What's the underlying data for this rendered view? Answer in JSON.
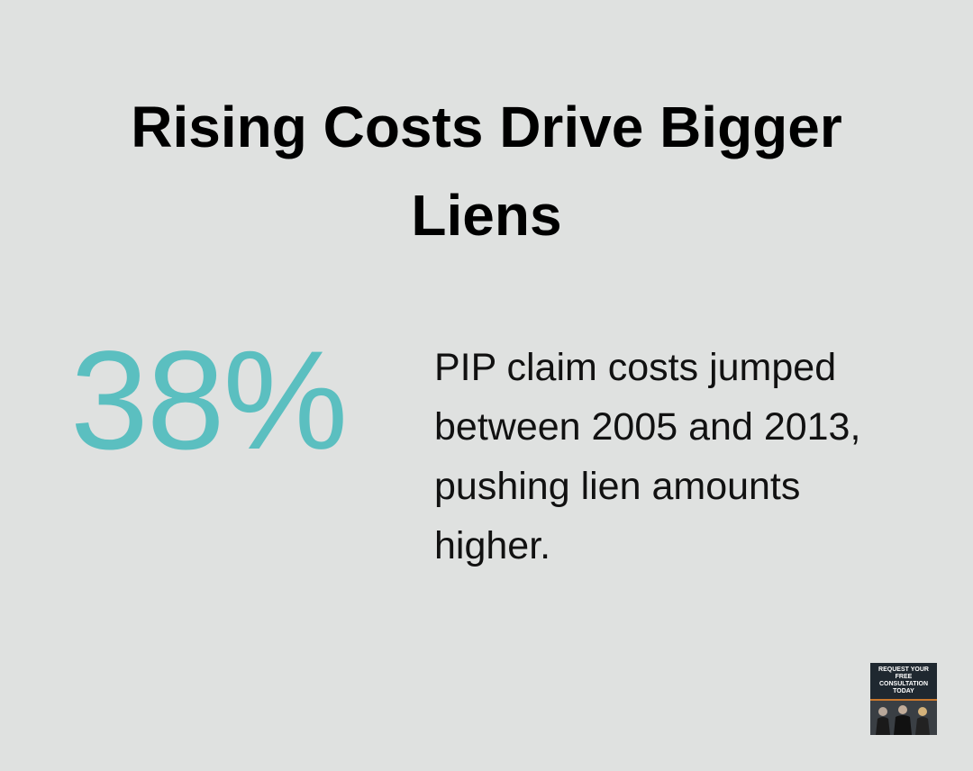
{
  "title": "Rising Costs Drive Bigger Liens",
  "stat": {
    "value": "38%",
    "description": "PIP claim costs jumped between 2005 and 2013, pushing lien amounts higher."
  },
  "badge": {
    "text": "REQUEST YOUR FREE CONSULTATION TODAY"
  }
}
